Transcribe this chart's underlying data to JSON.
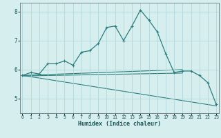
{
  "xlabel": "Humidex (Indice chaleur)",
  "x": [
    0,
    1,
    2,
    3,
    4,
    5,
    6,
    7,
    8,
    9,
    10,
    11,
    12,
    13,
    14,
    15,
    16,
    17,
    18,
    19,
    20,
    21,
    22,
    23
  ],
  "line1": [
    5.8,
    5.9,
    5.85,
    6.2,
    6.2,
    6.3,
    6.15,
    6.6,
    6.65,
    6.9,
    7.45,
    7.5,
    7.0,
    7.5,
    8.05,
    7.7,
    7.3,
    6.55,
    5.9,
    5.95,
    5.95,
    5.8,
    5.55,
    4.8
  ],
  "trend1_x": [
    0,
    23
  ],
  "trend1_y": [
    5.8,
    4.75
  ],
  "trend2_x": [
    0,
    19
  ],
  "trend2_y": [
    5.8,
    6.0
  ],
  "trend3_x": [
    0,
    19
  ],
  "trend3_y": [
    5.78,
    5.88
  ],
  "line_color": "#2a7d7d",
  "bg_color": "#d6eeee",
  "grid_color": "#aad4d4",
  "ylim": [
    4.5,
    8.3
  ],
  "xlim": [
    -0.3,
    23.3
  ],
  "yticks": [
    5,
    6,
    7,
    8
  ],
  "xticks": [
    0,
    1,
    2,
    3,
    4,
    5,
    6,
    7,
    8,
    9,
    10,
    11,
    12,
    13,
    14,
    15,
    16,
    17,
    18,
    19,
    20,
    21,
    22,
    23
  ]
}
